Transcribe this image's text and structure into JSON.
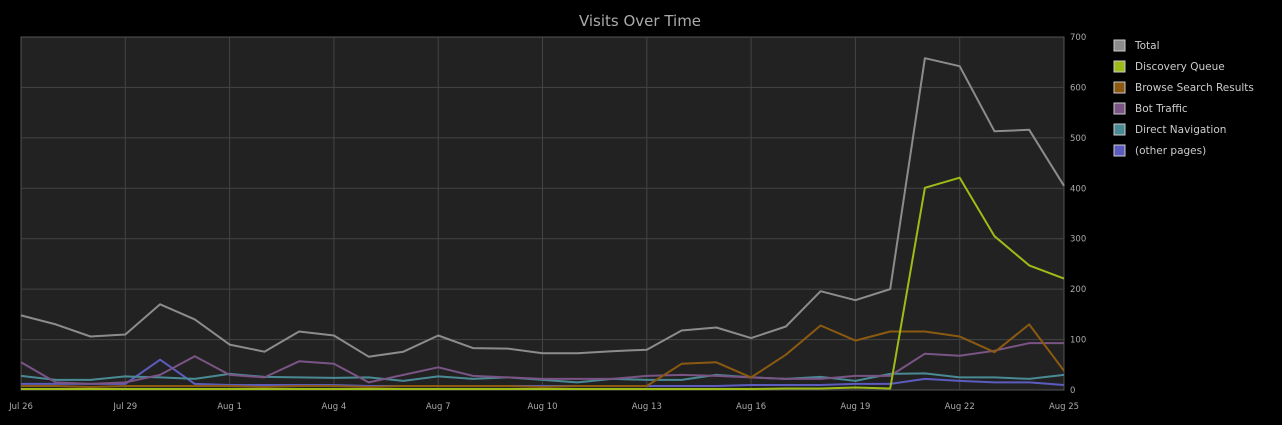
{
  "chart_data": {
    "type": "line",
    "title": "Visits Over Time",
    "xlabel": "",
    "ylabel": "",
    "ylim": [
      0,
      700
    ],
    "yticks": [
      0,
      100,
      200,
      300,
      400,
      500,
      600,
      700
    ],
    "x": [
      "Jul 26",
      "Jul 27",
      "Jul 28",
      "Jul 29",
      "Jul 30",
      "Jul 31",
      "Aug 1",
      "Aug 2",
      "Aug 3",
      "Aug 4",
      "Aug 5",
      "Aug 6",
      "Aug 7",
      "Aug 8",
      "Aug 9",
      "Aug 10",
      "Aug 11",
      "Aug 12",
      "Aug 13",
      "Aug 14",
      "Aug 15",
      "Aug 16",
      "Aug 17",
      "Aug 18",
      "Aug 19",
      "Aug 20",
      "Aug 21",
      "Aug 22",
      "Aug 23",
      "Aug 24",
      "Aug 25"
    ],
    "xticks": [
      "Jul 26",
      "Jul 29",
      "Aug 1",
      "Aug 4",
      "Aug 7",
      "Aug 10",
      "Aug 13",
      "Aug 16",
      "Aug 19",
      "Aug 22",
      "Aug 25"
    ],
    "grid": true,
    "legend_position": "right",
    "series": [
      {
        "name": "Total",
        "color": "#8c8c8c",
        "values": [
          148,
          130,
          106,
          110,
          170,
          140,
          90,
          76,
          116,
          108,
          66,
          76,
          108,
          83,
          82,
          73,
          73,
          77,
          80,
          118,
          124,
          103,
          126,
          196,
          178,
          200,
          658,
          642,
          513,
          516,
          405
        ]
      },
      {
        "name": "Discovery Queue",
        "color": "#9dbc18",
        "values": [
          2,
          2,
          2,
          2,
          2,
          2,
          2,
          2,
          2,
          2,
          2,
          2,
          2,
          2,
          2,
          2,
          2,
          2,
          2,
          2,
          2,
          2,
          3,
          3,
          5,
          3,
          401,
          421,
          305,
          247,
          221
        ]
      },
      {
        "name": "Browse Search Results",
        "color": "#8b5a10",
        "values": [
          8,
          8,
          6,
          8,
          8,
          8,
          8,
          6,
          8,
          8,
          6,
          8,
          8,
          8,
          8,
          6,
          8,
          8,
          8,
          52,
          55,
          25,
          70,
          128,
          98,
          116,
          116,
          106,
          75,
          130,
          38
        ]
      },
      {
        "name": "Bot Traffic",
        "color": "#7a5484",
        "values": [
          55,
          15,
          12,
          15,
          30,
          67,
          30,
          25,
          57,
          52,
          15,
          30,
          45,
          28,
          25,
          22,
          22,
          22,
          28,
          30,
          28,
          25,
          22,
          22,
          28,
          28,
          72,
          68,
          78,
          93,
          93
        ]
      },
      {
        "name": "Direct Navigation",
        "color": "#4a8a94",
        "values": [
          28,
          20,
          20,
          27,
          25,
          22,
          32,
          26,
          25,
          24,
          25,
          18,
          27,
          22,
          25,
          20,
          15,
          22,
          20,
          20,
          30,
          25,
          22,
          26,
          18,
          32,
          33,
          25,
          25,
          22,
          30
        ]
      },
      {
        "name": "(other pages)",
        "color": "#5c5cc0",
        "values": [
          12,
          12,
          12,
          12,
          60,
          12,
          10,
          10,
          10,
          10,
          8,
          8,
          8,
          8,
          8,
          8,
          8,
          8,
          8,
          8,
          8,
          10,
          10,
          10,
          12,
          12,
          22,
          18,
          15,
          15,
          10
        ]
      }
    ]
  }
}
